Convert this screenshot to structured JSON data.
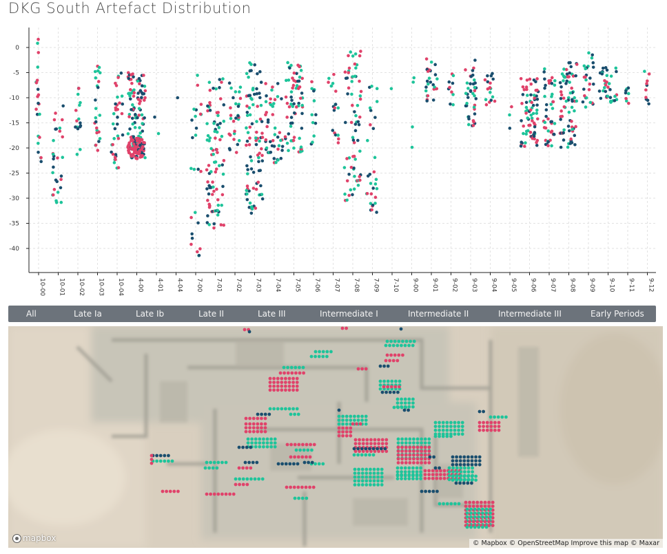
{
  "title": "DKG South Artefact Distribution",
  "colors": {
    "pink": "#e0426a",
    "teal": "#1ec49a",
    "navy": "#1a4e6e",
    "tabs_bg": "#6c737b"
  },
  "chart_data": {
    "type": "scatter",
    "subtype": "beeswarm",
    "title": "DKG South Artefact Distribution",
    "xlabel": "",
    "ylabel": "",
    "categories": [
      "10-00",
      "10-01",
      "10-02",
      "10-03",
      "10-04",
      "4-00",
      "4-01",
      "4-04",
      "7-00",
      "7-01",
      "7-02",
      "7-03",
      "7-04",
      "7-05",
      "7-06",
      "7-07",
      "7-08",
      "7-09",
      "7-10",
      "9-00",
      "9-01",
      "9-02",
      "9-03",
      "9-04",
      "9-05",
      "9-06",
      "9-07",
      "9-08",
      "9-09",
      "9-10",
      "9-11",
      "9-12"
    ],
    "yticks": [
      0,
      -5,
      -10,
      -15,
      -20,
      -25,
      -30,
      -35,
      -40
    ],
    "ylim": [
      -45,
      3
    ],
    "grid": "vertical dashed per category, horizontal dashed per tick",
    "series_colors": [
      "#e0426a",
      "#1ec49a",
      "#1a4e6e"
    ],
    "clusters": [
      {
        "cat": "10-00",
        "min": -24,
        "max": 2,
        "n": 22,
        "w": 1
      },
      {
        "cat": "10-01",
        "min": -31,
        "max": -11,
        "n": 30,
        "w": 2
      },
      {
        "cat": "10-02",
        "min": -22,
        "max": -8,
        "n": 16,
        "w": 1
      },
      {
        "cat": "10-03",
        "min": -21,
        "max": -3,
        "n": 24,
        "w": 1
      },
      {
        "cat": "10-04",
        "min": -24,
        "max": -5,
        "n": 36,
        "w": 2
      },
      {
        "cat": "4-00",
        "min": -22,
        "max": -5,
        "n": 110,
        "w": 3,
        "blob": {
          "y": -20,
          "n": 90
        }
      },
      {
        "cat": "4-01",
        "min": -19,
        "max": -9,
        "n": 2,
        "w": 1
      },
      {
        "cat": "4-04",
        "min": -10,
        "max": -10,
        "n": 1,
        "w": 1
      },
      {
        "cat": "7-00",
        "min": -42,
        "max": -5,
        "n": 26,
        "w": 2
      },
      {
        "cat": "7-01",
        "min": -36,
        "max": -6,
        "n": 90,
        "w": 3
      },
      {
        "cat": "7-02",
        "min": -21,
        "max": -7,
        "n": 30,
        "w": 2
      },
      {
        "cat": "7-03",
        "min": -33,
        "max": -3,
        "n": 90,
        "w": 3
      },
      {
        "cat": "7-04",
        "min": -23,
        "max": -7,
        "n": 48,
        "w": 3
      },
      {
        "cat": "7-05",
        "min": -21,
        "max": -3,
        "n": 70,
        "w": 3
      },
      {
        "cat": "7-06",
        "min": -20,
        "max": -3,
        "n": 12,
        "w": 1
      },
      {
        "cat": "7-07",
        "min": -19,
        "max": -5,
        "n": 18,
        "w": 2
      },
      {
        "cat": "7-08",
        "min": -31,
        "max": 0,
        "n": 70,
        "w": 3
      },
      {
        "cat": "7-09",
        "min": -33,
        "max": -7,
        "n": 30,
        "w": 2
      },
      {
        "cat": "7-10",
        "min": -9,
        "max": -8,
        "n": 1,
        "w": 1
      },
      {
        "cat": "9-00",
        "min": -20,
        "max": -4,
        "n": 4,
        "w": 1
      },
      {
        "cat": "9-01",
        "min": -11,
        "max": -2,
        "n": 26,
        "w": 2
      },
      {
        "cat": "9-02",
        "min": -13,
        "max": -4,
        "n": 10,
        "w": 1
      },
      {
        "cat": "9-03",
        "min": -16,
        "max": -2,
        "n": 40,
        "w": 2
      },
      {
        "cat": "9-04",
        "min": -12,
        "max": -5,
        "n": 18,
        "w": 2
      },
      {
        "cat": "9-05",
        "min": -18,
        "max": -6,
        "n": 3,
        "w": 1
      },
      {
        "cat": "9-06",
        "min": -20,
        "max": -6,
        "n": 75,
        "w": 3
      },
      {
        "cat": "9-07",
        "min": -20,
        "max": -4,
        "n": 45,
        "w": 2
      },
      {
        "cat": "9-08",
        "min": -20,
        "max": -3,
        "n": 75,
        "w": 3
      },
      {
        "cat": "9-09",
        "min": -12,
        "max": -1,
        "n": 26,
        "w": 2
      },
      {
        "cat": "9-10",
        "min": -11,
        "max": -4,
        "n": 35,
        "w": 3
      },
      {
        "cat": "9-11",
        "min": -12,
        "max": -8,
        "n": 8,
        "w": 1
      },
      {
        "cat": "9-12",
        "min": -12,
        "max": -4,
        "n": 10,
        "w": 1
      }
    ]
  },
  "tabs": [
    {
      "label": "All"
    },
    {
      "label": "Late Ia"
    },
    {
      "label": "Late Ib"
    },
    {
      "label": "Late II"
    },
    {
      "label": "Late III"
    },
    {
      "label": "Intermediate I"
    },
    {
      "label": "Intermediate II"
    },
    {
      "label": "Intermediate III"
    },
    {
      "label": "Early Periods"
    }
  ],
  "map": {
    "logo_text": "mapbox",
    "attribution": "© Mapbox © OpenStreetMap Improve this map © Maxar"
  }
}
